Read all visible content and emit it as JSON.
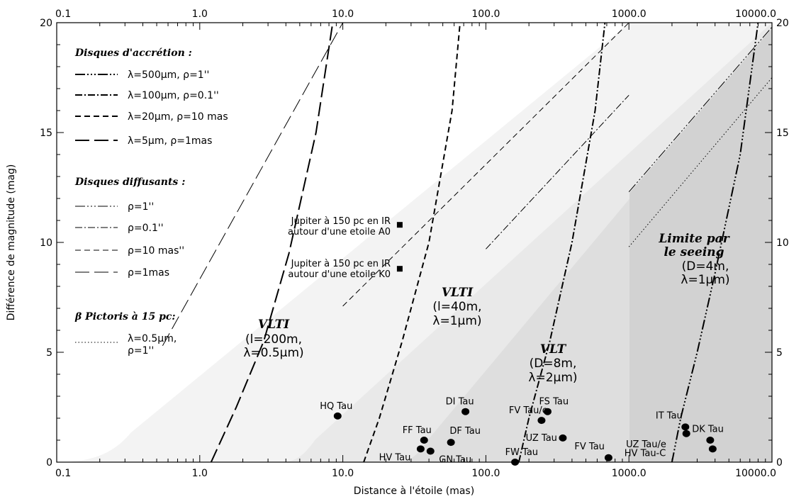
{
  "chart_data": {
    "type": "line",
    "xlabel": "Distance à l'étoile (mas)",
    "ylabel": "Différence de magnitude (mag)",
    "xscale": "log",
    "xlim": [
      0.1,
      10000
    ],
    "ylim": [
      0,
      20
    ],
    "x_ticks": [
      "0.1",
      "1.0",
      "10.0",
      "100.0",
      "1000.0",
      "10000.0"
    ],
    "y_ticks": [
      "0",
      "5",
      "10",
      "15",
      "20"
    ],
    "legend_accretion_title": "Disques d'accrétion :",
    "legend_diffusants_title": "Disques diffusants :",
    "legend_pictoris_title": "β Pictoris à 15 pc:",
    "accretion_series": [
      {
        "label": "λ=500μm, ρ=1''",
        "style": "dash-dot-dot-dot",
        "x": [
          2000,
          2300,
          3000,
          4000,
          6000,
          8000
        ],
        "y": [
          0,
          2,
          5,
          8.6,
          14,
          20
        ]
      },
      {
        "label": "λ=100μm, ρ=0.1''",
        "style": "dash-dot",
        "x": [
          170,
          200,
          280,
          400,
          580,
          680
        ],
        "y": [
          0,
          2,
          5.5,
          10,
          16,
          20
        ]
      },
      {
        "label": "λ=20μm, ρ=10 mas",
        "style": "short-dash",
        "x": [
          14,
          18,
          26,
          40,
          58,
          66
        ],
        "y": [
          0,
          2,
          5.5,
          10,
          16,
          20
        ]
      },
      {
        "label": "λ=5μm, ρ=1mas",
        "style": "long-dash",
        "x": [
          1.2,
          1.8,
          2.8,
          4.2,
          6.5,
          8.5
        ],
        "y": [
          0,
          2.5,
          5.5,
          9.5,
          15,
          20
        ]
      }
    ],
    "diffusants_series": [
      {
        "label": "ρ=1''",
        "style": "dash-dot-dot-dot",
        "x": [
          1000,
          10000
        ],
        "y": [
          12.3,
          19.8
        ]
      },
      {
        "label": "ρ=0.1''",
        "style": "dash-dot",
        "x": [
          100,
          1000
        ],
        "y": [
          9.7,
          16.7
        ]
      },
      {
        "label": "ρ=10 mas''",
        "style": "short-dash",
        "x": [
          10,
          1000
        ],
        "y": [
          7.1,
          20
        ]
      },
      {
        "label": "ρ=1mas",
        "style": "long-dash",
        "x": [
          0.55,
          10
        ],
        "y": [
          5.3,
          20
        ]
      }
    ],
    "pictoris_series": [
      {
        "label": "λ=0.5μm,",
        "label2": "ρ=1''",
        "style": "dotted",
        "x": [
          1000,
          10000
        ],
        "y": [
          9.8,
          17.5
        ]
      }
    ],
    "regions": [
      {
        "lines": [
          "VLTI",
          "(l=200m,",
          "λ=0.5μm)"
        ]
      },
      {
        "lines": [
          "VLTI",
          "(l=40m,",
          "λ=1μm)"
        ]
      },
      {
        "lines": [
          "VLT",
          "(D=8m,",
          "λ=2μm)"
        ]
      },
      {
        "lines": [
          "Limite par",
          "le seeing",
          "(D=4m,",
          "λ=1μm)"
        ]
      }
    ],
    "markers": [
      {
        "label": "Jupiter à 150 pc en IR",
        "label2": "autour d'une etoile A0",
        "x": 25,
        "y": 10.8
      },
      {
        "label": "Jupiter à 150 pc en IR",
        "label2": "autour d'une etoile K0",
        "x": 25,
        "y": 8.8
      }
    ],
    "stars": [
      {
        "name": "HQ Tau",
        "x": 9.2,
        "y": 2.1
      },
      {
        "name": "DI Tau",
        "x": 72,
        "y": 2.3
      },
      {
        "name": "FF Tau",
        "x": 37,
        "y": 1.0
      },
      {
        "name": "DF Tau",
        "x": 57,
        "y": 0.9
      },
      {
        "name": "HV Tau",
        "x": 35,
        "y": 0.6
      },
      {
        "name": "GN Tau",
        "x": 41,
        "y": 0.5
      },
      {
        "name": "FV Tau/c",
        "x": 245,
        "y": 1.9
      },
      {
        "name": "FS Tau",
        "x": 270,
        "y": 2.3
      },
      {
        "name": "UZ Tau",
        "x": 345,
        "y": 1.1
      },
      {
        "name": "FW Tau",
        "x": 160,
        "y": 0.0
      },
      {
        "name": "FV Tau",
        "x": 720,
        "y": 0.2
      },
      {
        "name": "IT Tau",
        "x": 2480,
        "y": 1.6
      },
      {
        "name": "DK Tau",
        "x": 2520,
        "y": 1.3
      },
      {
        "name": "UZ Tau/e",
        "x": 3700,
        "y": 1.0
      },
      {
        "name": "HV Tau-C",
        "x": 3850,
        "y": 0.6
      }
    ],
    "grid": false
  }
}
